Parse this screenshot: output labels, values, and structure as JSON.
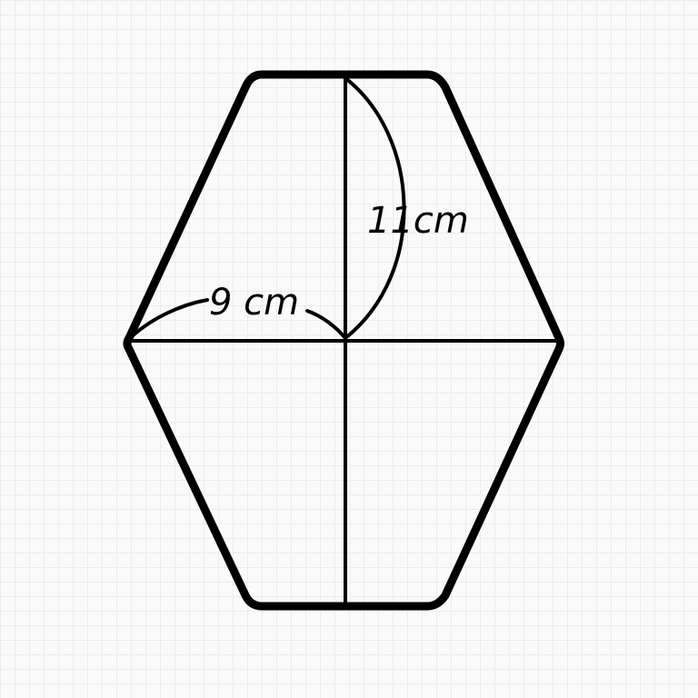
{
  "figure": {
    "labels": {
      "height_label": "11cm",
      "width_label": "9 cm"
    },
    "colors": {
      "stroke": "#000000",
      "background": "#fafafa",
      "grid": "#ececec"
    }
  }
}
